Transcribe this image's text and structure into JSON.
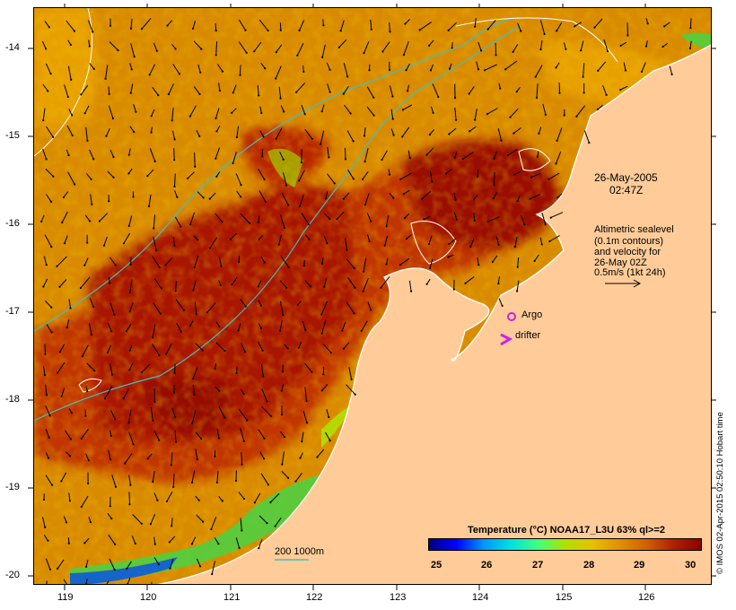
{
  "map": {
    "timestamp_date": "26-May-2005",
    "timestamp_time": "02:47Z",
    "altimetry_lines": [
      "Altimetric sealevel",
      "(0.1m contours)",
      "and velocity for",
      "26-May 02Z",
      "0.5m/s (1kt 24h)"
    ],
    "argo_label": "Argo",
    "drifter_label": "drifter",
    "bathymetry_label": "200  1000m",
    "credit": "© IMOS 02-Apr-2015 02:50:10 Hobart time",
    "lon_ticks": [
      "119",
      "120",
      "121",
      "122",
      "123",
      "124",
      "125",
      "126"
    ],
    "lat_ticks": [
      "-14",
      "-15",
      "-16",
      "-17",
      "-18",
      "-19",
      "-20"
    ]
  },
  "colorbar": {
    "title": "Temperature (°C) NOAA17_L3U 63% ql>=2",
    "ticks": [
      "25",
      "26",
      "27",
      "28",
      "29",
      "30"
    ],
    "colors": [
      "#000080",
      "#0000ff",
      "#0096ff",
      "#00e0e0",
      "#40ff80",
      "#b0e000",
      "#e8c000",
      "#e09000",
      "#d06000",
      "#b02000",
      "#8b0000"
    ]
  },
  "colors": {
    "land": "#ffcc99",
    "sea_warm": "#c03000",
    "sea_hot": "#8b0000",
    "sea_mid": "#d88800",
    "coast": "#ffffff",
    "contour": "#40c0c0",
    "argo": "#d020e0"
  }
}
